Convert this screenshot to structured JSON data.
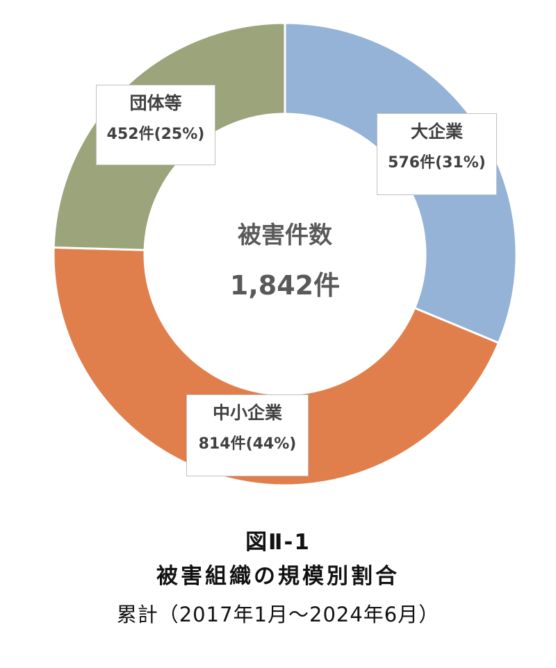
{
  "chart_data": {
    "type": "pie",
    "donut": true,
    "center_label": {
      "title": "被害件数",
      "total": "1,842件"
    },
    "slices": [
      {
        "name": "大企業",
        "count": 576,
        "percent": 31,
        "value_label": "576件(31%)",
        "color": "#95b3d7"
      },
      {
        "name": "中小企業",
        "count": 814,
        "percent": 44,
        "value_label": "814件(44%)",
        "color": "#e07f4b"
      },
      {
        "name": "団体等",
        "count": 452,
        "percent": 25,
        "value_label": "452件(25%)",
        "color": "#9ba47a"
      }
    ],
    "start": "12 o'clock, clockwise",
    "legend": "none"
  },
  "caption": {
    "figure": "図Ⅱ-1",
    "title": "被害組織の規模別割合",
    "period": "累計（2017年1月～2024年6月）"
  }
}
